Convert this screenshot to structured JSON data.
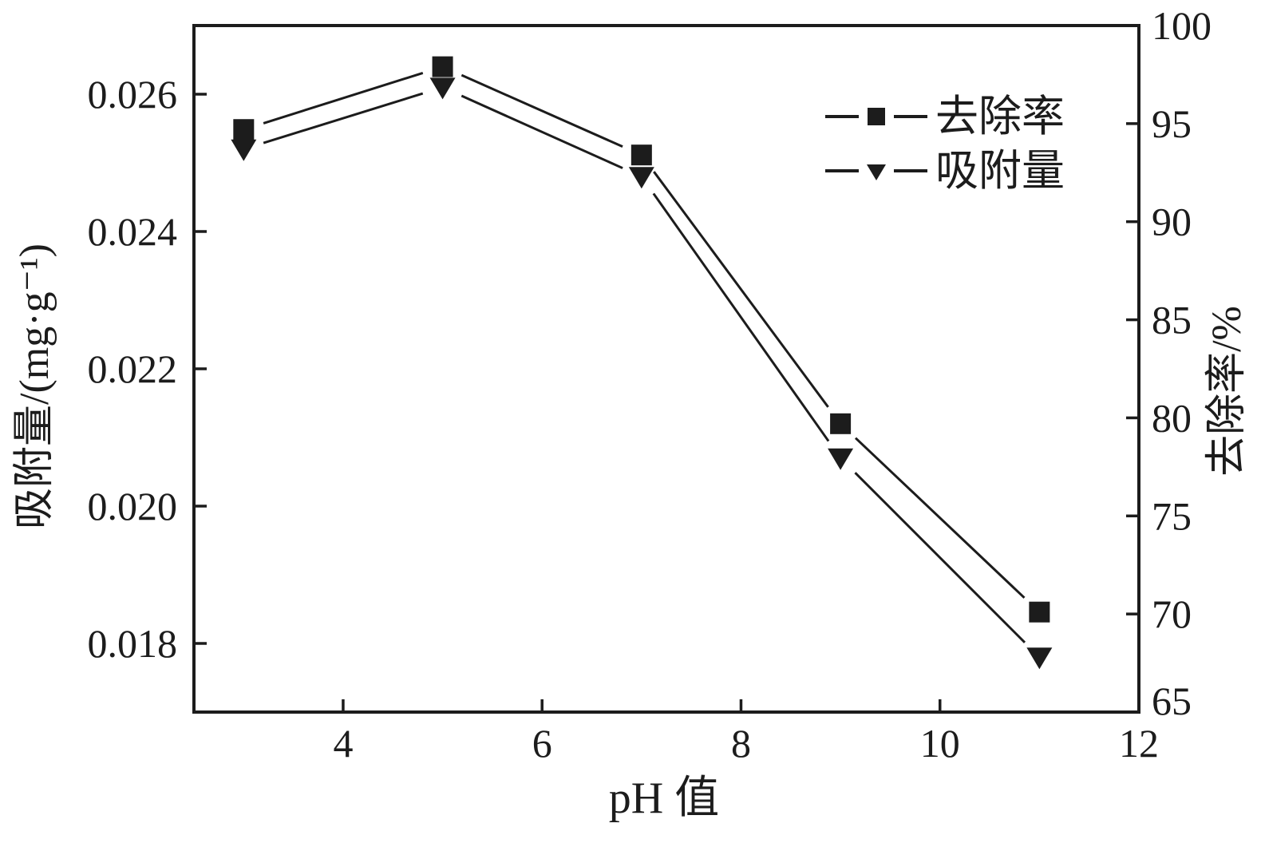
{
  "chart_data": {
    "type": "line",
    "title": "",
    "x": [
      3,
      5,
      7,
      9,
      11
    ],
    "xlabel": "pH 值",
    "x_ticks": [
      "4",
      "6",
      "8",
      "10",
      "12"
    ],
    "x_tick_values": [
      4,
      6,
      8,
      10,
      12
    ],
    "xlim": [
      2.5,
      12
    ],
    "grid": false,
    "series": [
      {
        "name": "去除率",
        "axis": "right",
        "marker": "square",
        "line_color": "#1c1c1c",
        "values": [
          94.7,
          97.9,
          93.4,
          79.7,
          70.1
        ]
      },
      {
        "name": "吸附量",
        "axis": "left",
        "marker": "triangle-down",
        "line_color": "#1c1c1c",
        "values": [
          0.0252,
          0.0261,
          0.0248,
          0.0207,
          0.0178
        ]
      }
    ],
    "y_left": {
      "label": "吸附量/(mg·g⁻¹)",
      "ticks": [
        "0.026",
        "0.024",
        "0.022",
        "0.020",
        "0.018"
      ],
      "tick_values": [
        0.026,
        0.024,
        0.022,
        0.02,
        0.018
      ],
      "lim": [
        0.017,
        0.027
      ]
    },
    "y_right": {
      "label": "去除率/%",
      "ticks": [
        "100",
        "95",
        "90",
        "85",
        "80",
        "75",
        "70",
        "65"
      ],
      "tick_values": [
        100,
        95,
        90,
        85,
        80,
        75,
        70,
        65
      ],
      "lim": [
        65,
        100
      ]
    },
    "legend": {
      "position": "upper-right-inside",
      "entries": [
        "去除率",
        "吸附量"
      ]
    },
    "colors": {
      "foreground": "#1c1c1c",
      "background": "#ffffff"
    }
  }
}
